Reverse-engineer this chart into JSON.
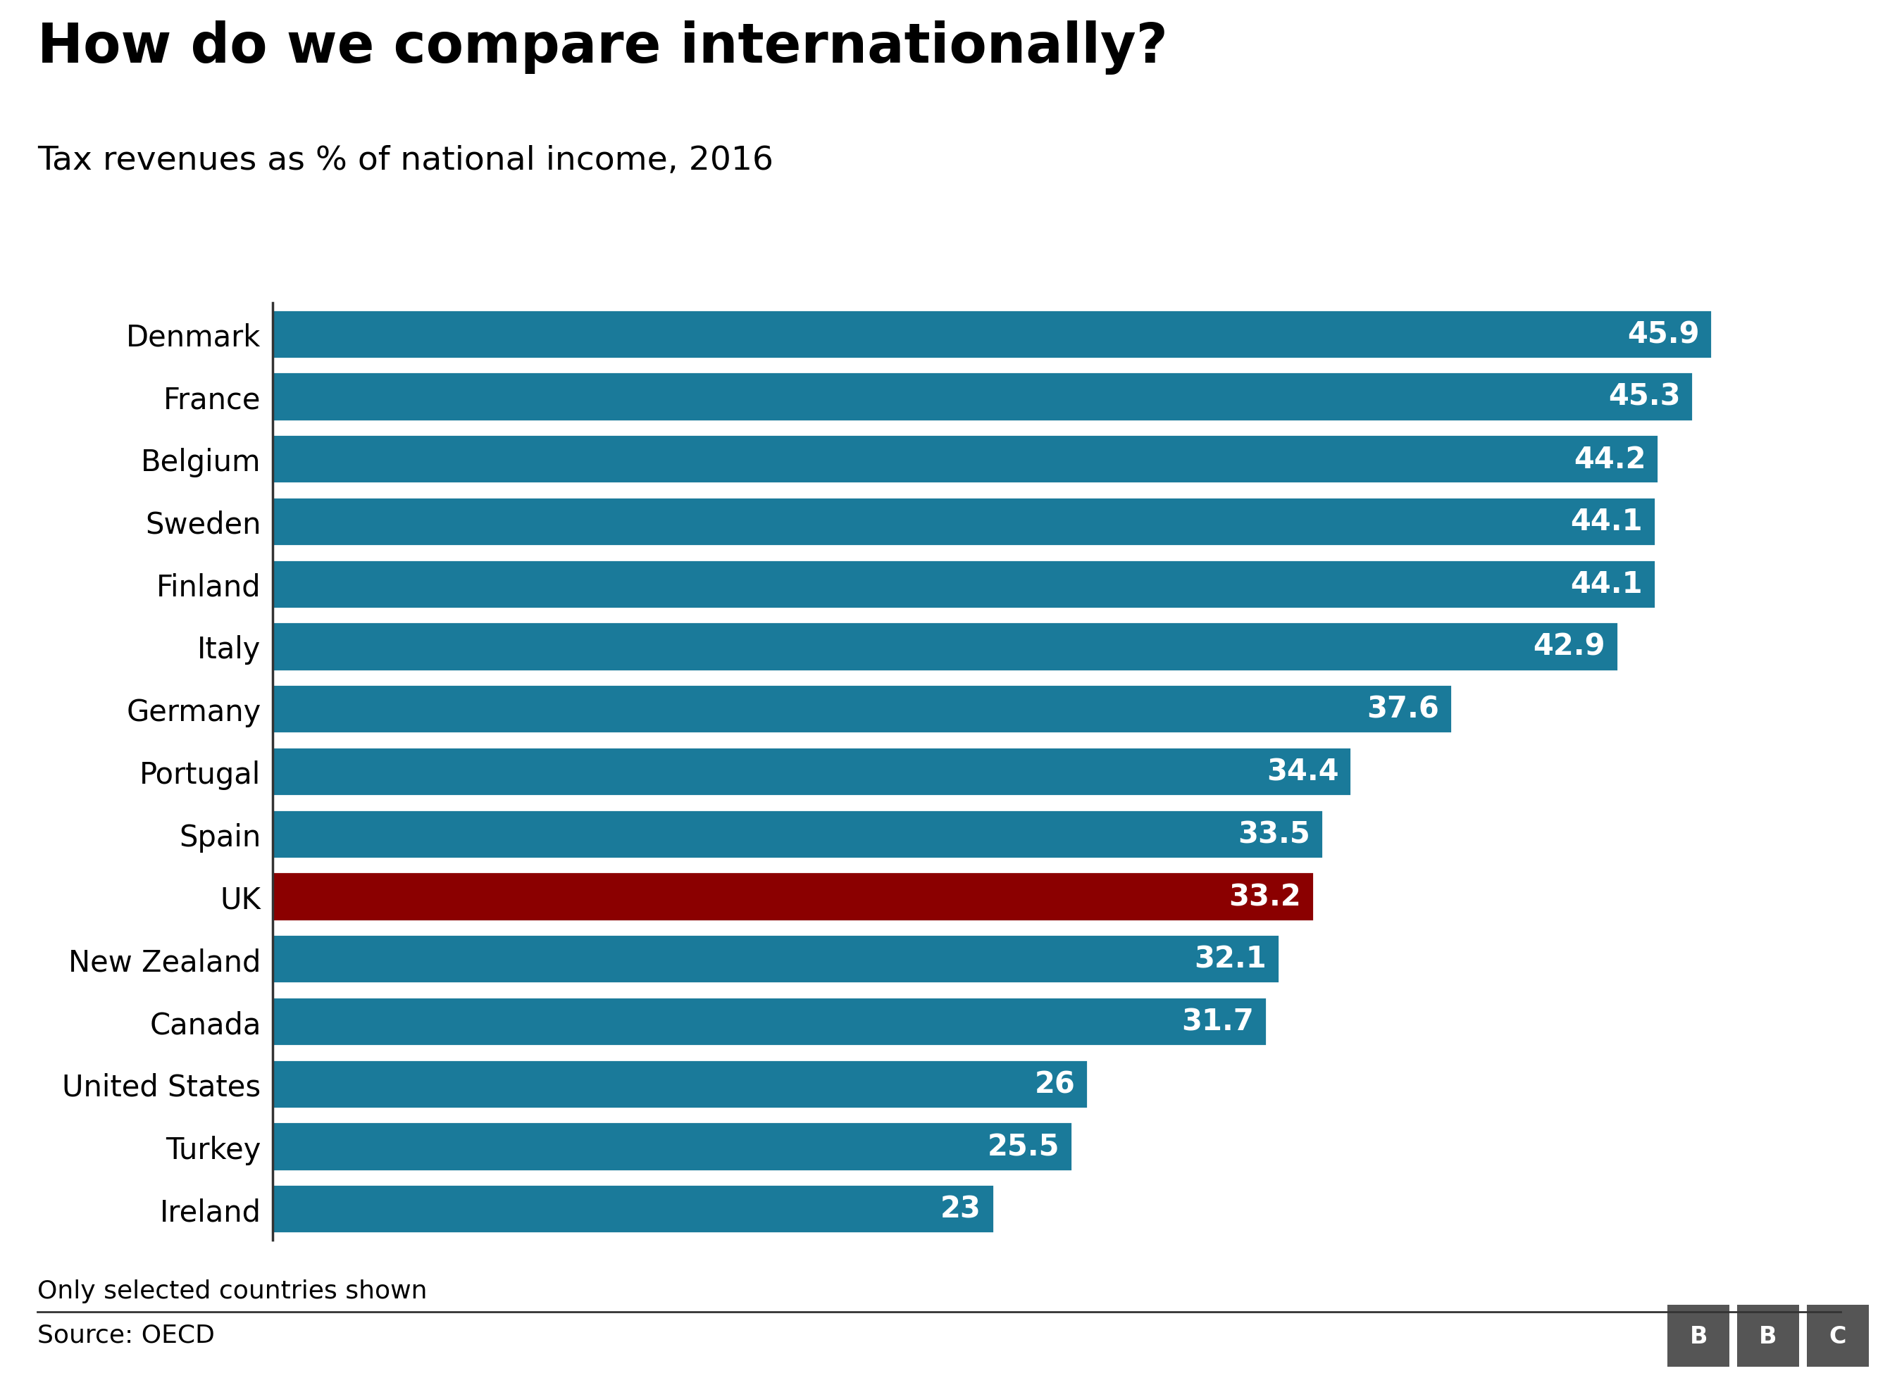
{
  "title": "How do we compare internationally?",
  "subtitle": "Tax revenues as % of national income, 2016",
  "countries": [
    "Denmark",
    "France",
    "Belgium",
    "Sweden",
    "Finland",
    "Italy",
    "Germany",
    "Portugal",
    "Spain",
    "UK",
    "New Zealand",
    "Canada",
    "United States",
    "Turkey",
    "Ireland"
  ],
  "values": [
    45.9,
    45.3,
    44.2,
    44.1,
    44.1,
    42.9,
    37.6,
    34.4,
    33.5,
    33.2,
    32.1,
    31.7,
    26,
    25.5,
    23
  ],
  "bar_color_default": "#1a7a9a",
  "bar_color_highlight": "#8b0000",
  "highlight_country": "UK",
  "background_color": "#ffffff",
  "text_color": "#000000",
  "bar_text_color": "#ffffff",
  "title_fontsize": 56,
  "subtitle_fontsize": 34,
  "label_fontsize": 30,
  "value_fontsize": 30,
  "footer_fontsize": 26,
  "source_text": "Source: OECD",
  "note_text": "Only selected countries shown",
  "xlim": [
    0,
    50
  ],
  "bbc_logo_color": "#555555"
}
